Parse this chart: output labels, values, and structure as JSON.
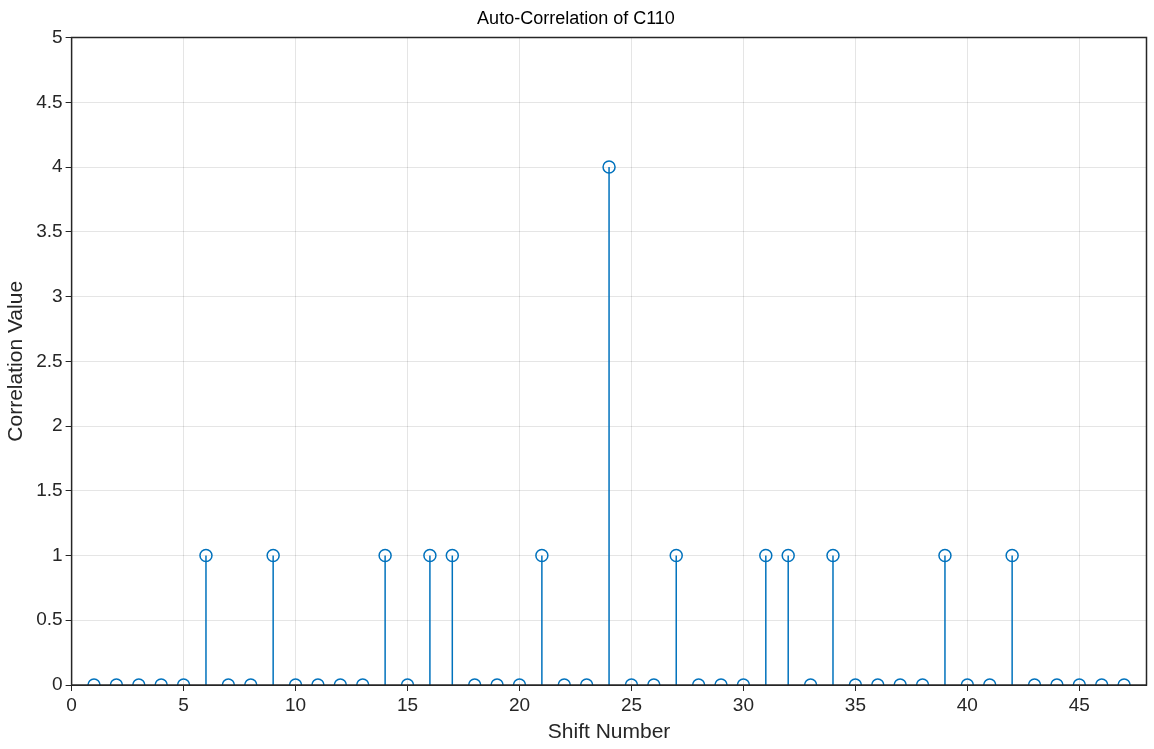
{
  "chart_data": {
    "type": "lollipop",
    "title": "Auto-Correlation of C110",
    "xlabel": "Shift Number",
    "ylabel": "Correlation Value",
    "x": [
      1,
      2,
      3,
      4,
      5,
      6,
      7,
      8,
      9,
      10,
      11,
      12,
      13,
      14,
      15,
      16,
      17,
      18,
      19,
      20,
      21,
      22,
      23,
      24,
      25,
      26,
      27,
      28,
      29,
      30,
      31,
      32,
      33,
      34,
      35,
      36,
      37,
      38,
      39,
      40,
      41,
      42,
      43,
      44,
      45,
      46,
      47
    ],
    "values": [
      0,
      0,
      0,
      0,
      0,
      1,
      0,
      0,
      1,
      0,
      0,
      0,
      0,
      1,
      0,
      1,
      1,
      0,
      0,
      0,
      1,
      0,
      0,
      4,
      0,
      0,
      1,
      0,
      0,
      0,
      1,
      1,
      0,
      1,
      0,
      0,
      0,
      0,
      1,
      0,
      0,
      1,
      0,
      0,
      0,
      0,
      0
    ],
    "color": "#0072bd",
    "marker": "circle",
    "grid": true,
    "legend": false,
    "xlim": [
      0,
      48
    ],
    "xticks": [
      0,
      5,
      10,
      15,
      20,
      25,
      30,
      35,
      40,
      45
    ],
    "ylim": [
      0,
      5
    ],
    "yticks": [
      0,
      0.5,
      1,
      1.5,
      2,
      2.5,
      3,
      3.5,
      4,
      4.5,
      5
    ]
  }
}
